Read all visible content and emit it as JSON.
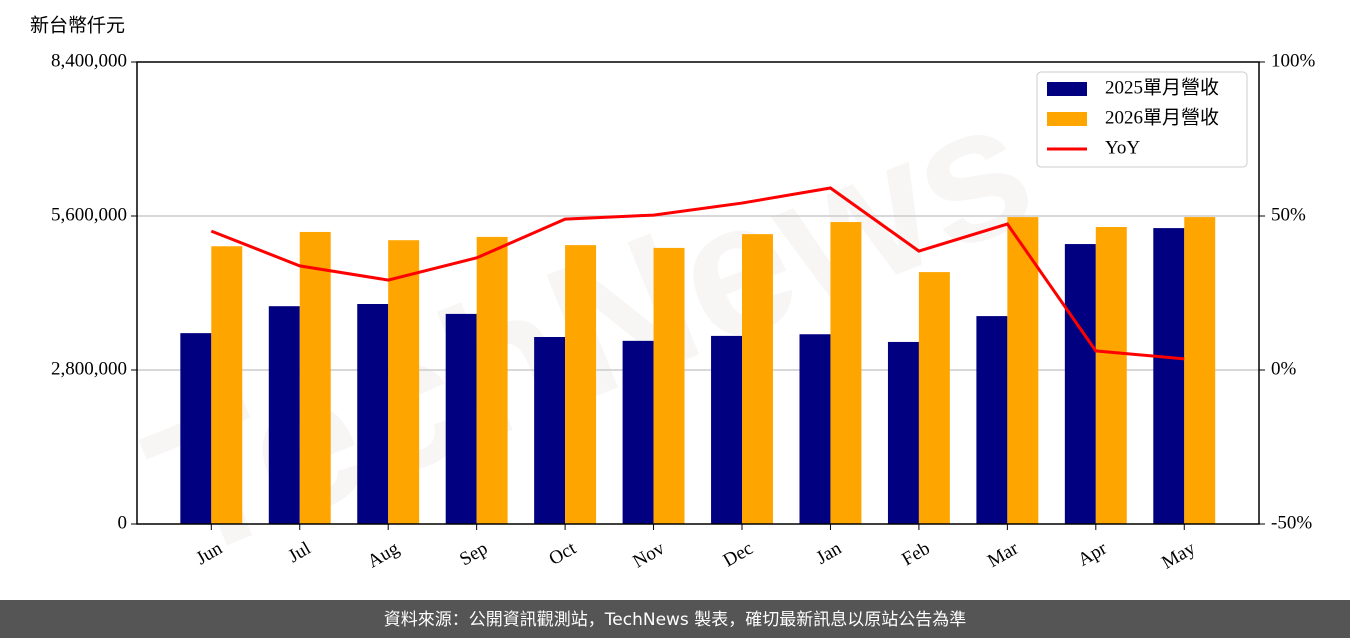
{
  "chart_data": {
    "type": "bar-line",
    "y_label": "新台幣仟元",
    "watermark": "TechNews",
    "footer": "資料來源：公開資訊觀測站，TechNews 製表，確切最新訊息以原站公告為準",
    "categories": [
      "Jun",
      "Jul",
      "Aug",
      "Sep",
      "Oct",
      "Nov",
      "Dec",
      "Jan",
      "Feb",
      "Mar",
      "Apr",
      "May"
    ],
    "series": [
      {
        "name": "2025單月營收",
        "type": "bar",
        "color": "#000080",
        "values": [
          3470000,
          3960000,
          4000000,
          3820000,
          3400000,
          3330000,
          3420000,
          3450000,
          3310000,
          3780000,
          5090000,
          5380000
        ]
      },
      {
        "name": "2026單月營收",
        "type": "bar",
        "color": "#ffa500",
        "values": [
          5050000,
          5310000,
          5160000,
          5220000,
          5070000,
          5020000,
          5270000,
          5490000,
          4580000,
          5580000,
          5400000,
          5580000
        ]
      },
      {
        "name": "YoY",
        "type": "line",
        "axis": "y2",
        "color": "#ff0000",
        "values": [
          45.1,
          33.8,
          29.2,
          36.4,
          49.0,
          50.3,
          54.2,
          59.1,
          38.6,
          47.4,
          6.2,
          3.6
        ]
      }
    ],
    "ylim": [
      0,
      8400000
    ],
    "yticks": [
      {
        "value": 0,
        "label": "0"
      },
      {
        "value": 2800000,
        "label": "2,800,000"
      },
      {
        "value": 5600000,
        "label": "5,600,000"
      },
      {
        "value": 8400000,
        "label": "8,400,000"
      }
    ],
    "y2lim": [
      -50,
      100
    ],
    "y2ticks": [
      {
        "value": -50,
        "label": "-50%"
      },
      {
        "value": 0,
        "label": "0%"
      },
      {
        "value": 50,
        "label": "50%"
      },
      {
        "value": 100,
        "label": "100%"
      }
    ],
    "grid": true,
    "legend": "upper right"
  }
}
